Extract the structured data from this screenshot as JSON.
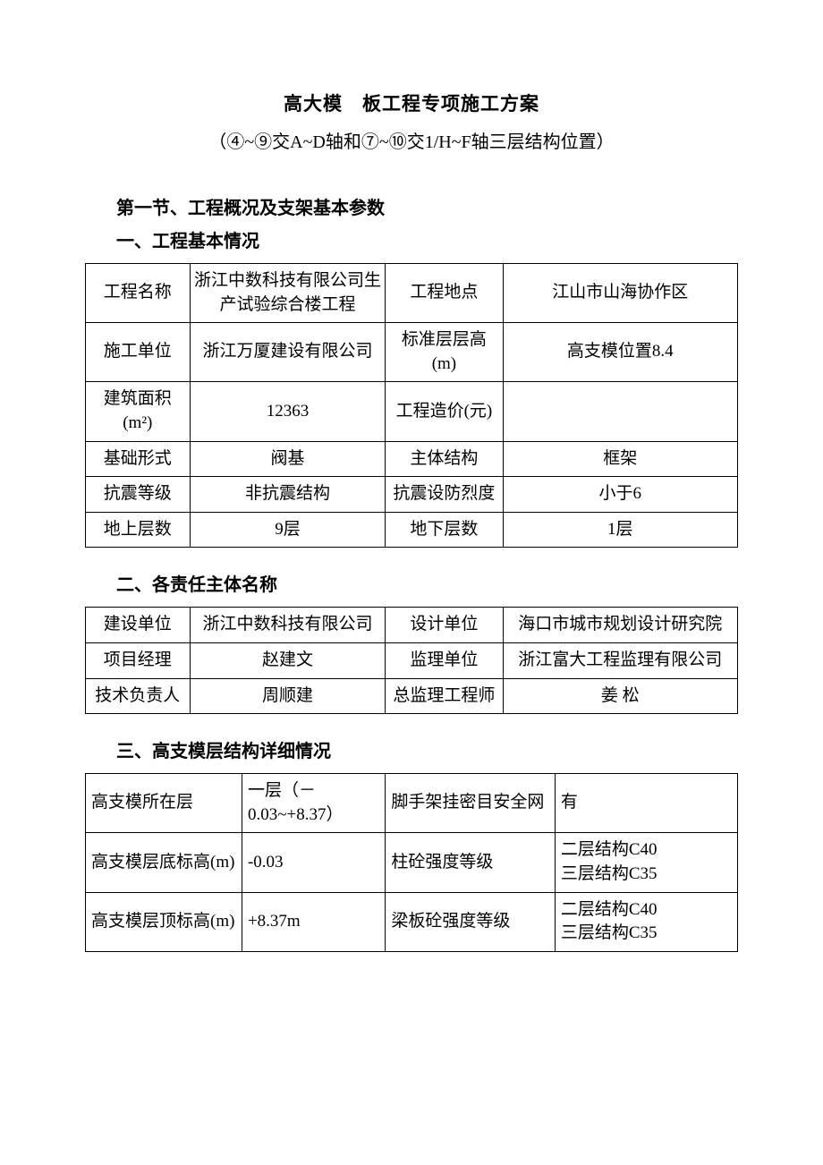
{
  "document": {
    "title_main": "高大模　板工程专项施工方案",
    "title_sub": "（④~⑨交A~D轴和⑦~⑩交1/H~F轴三层结构位置）",
    "section1_heading": "第一节、工程概况及支架基本参数",
    "sub1_heading": "一、工程基本情况",
    "sub2_heading": "二、各责任主体名称",
    "sub3_heading": "三、高支模层结构详细情况"
  },
  "table1": {
    "rows": [
      {
        "c1": "工程名称",
        "c2": "浙江中数科技有限公司生产试验综合楼工程",
        "c3": "工程地点",
        "c4": "江山市山海协作区"
      },
      {
        "c1": "施工单位",
        "c2": "浙江万厦建设有限公司",
        "c3": "标准层层高(m)",
        "c4": "高支模位置8.4"
      },
      {
        "c1": "建筑面积(m²)",
        "c2": "12363",
        "c3": "工程造价(元)",
        "c4": ""
      },
      {
        "c1": "基础形式",
        "c2": "阀基",
        "c3": "主体结构",
        "c4": "框架"
      },
      {
        "c1": "抗震等级",
        "c2": "非抗震结构",
        "c3": "抗震设防烈度",
        "c4": "小于6"
      },
      {
        "c1": "地上层数",
        "c2": "9层",
        "c3": "地下层数",
        "c4": "1层"
      }
    ]
  },
  "table2": {
    "rows": [
      {
        "c1": "建设单位",
        "c2": "浙江中数科技有限公司",
        "c3": "设计单位",
        "c4": "海口市城市规划设计研究院"
      },
      {
        "c1": "项目经理",
        "c2": "赵建文",
        "c3": "监理单位",
        "c4": "浙江富大工程监理有限公司"
      },
      {
        "c1": "技术负责人",
        "c2": "周顺建",
        "c3": "总监理工程师",
        "c4": "姜 松"
      }
    ]
  },
  "table3": {
    "rows": [
      {
        "c1": "高支模所在层",
        "c2": "一层（－0.03~+8.37）",
        "c3": "脚手架挂密目安全网",
        "c4": "有"
      },
      {
        "c1": "高支模层底标高(m)",
        "c2": "-0.03",
        "c3": "柱砼强度等级",
        "c4": "二层结构C40\n三层结构C35"
      },
      {
        "c1": "高支模层顶标高(m)",
        "c2": "+8.37m",
        "c3": "梁板砼强度等级",
        "c4": "二层结构C40\n三层结构C35"
      }
    ]
  },
  "style": {
    "font_family": "SimSun",
    "title_fontsize": 21,
    "body_fontsize": 19,
    "border_color": "#000000",
    "bg_color": "#ffffff",
    "text_color": "#000000"
  }
}
